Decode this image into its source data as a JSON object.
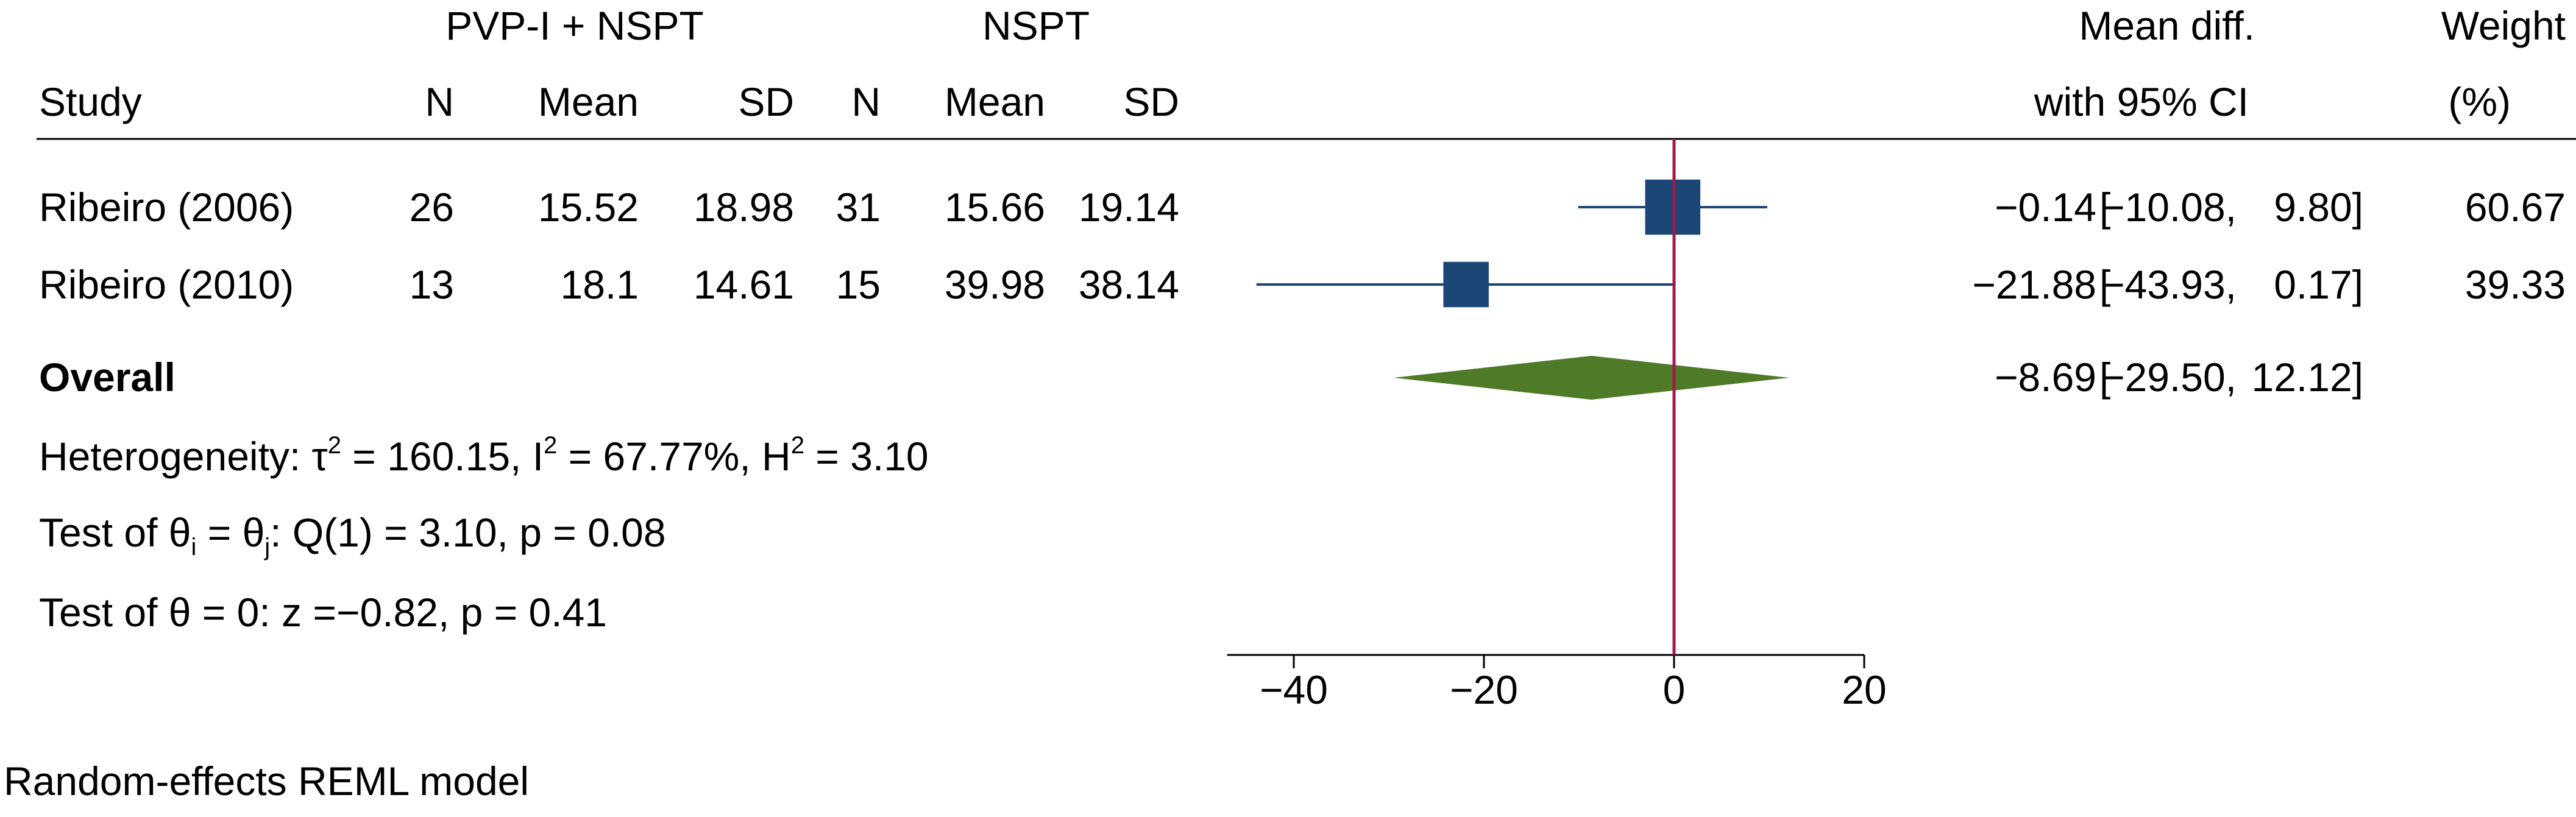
{
  "chart_data": {
    "type": "forest",
    "group_labels": {
      "treatment": "PVP-I + NSPT",
      "control": "NSPT"
    },
    "columns": {
      "study": "Study",
      "n": "N",
      "mean": "Mean",
      "sd": "SD",
      "effect_line1": "Mean diff.",
      "effect_line2": "with 95% CI",
      "weight_line1": "Weight",
      "weight_line2": "(%)"
    },
    "studies": [
      {
        "name": "Ribeiro (2006)",
        "t_n": "26",
        "t_mean": "15.52",
        "t_sd": "18.98",
        "c_n": "31",
        "c_mean": "15.66",
        "c_sd": "19.14",
        "effect": -0.14,
        "lower": -10.08,
        "upper": 9.8,
        "weight": 60.67,
        "effect_text": "−0.14",
        "lower_text": "−10.08,",
        "upper_text": "9.80]",
        "weight_text": "60.67"
      },
      {
        "name": "Ribeiro (2010)",
        "t_n": "13",
        "t_mean": "18.1",
        "t_sd": "14.61",
        "c_n": "15",
        "c_mean": "39.98",
        "c_sd": "38.14",
        "effect": -21.88,
        "lower": -43.93,
        "upper": 0.17,
        "weight": 39.33,
        "effect_text": "−21.88",
        "lower_text": "−43.93,",
        "upper_text": "0.17]",
        "weight_text": "39.33"
      }
    ],
    "overall": {
      "label": "Overall",
      "effect": -8.69,
      "lower": -29.5,
      "upper": 12.12,
      "effect_text": "−8.69",
      "lower_text": "−29.50,",
      "upper_text": "12.12]"
    },
    "stats": {
      "heterogeneity": {
        "prefix": "Heterogeneity: ",
        "tau": "τ",
        "sup": "2",
        "tau_value": " = 160.15, I",
        "i2_value": " = 67.77%, H",
        "h2_value": " = 3.10"
      },
      "test_equal": {
        "prefix": "Test of θ",
        "sub_i": "i",
        "middle": " = θ",
        "sub_j": "j",
        "suffix": ": Q(1) = 3.10, p = 0.08"
      },
      "test_zero": "Test of θ = 0: z =−0.82, p = 0.41"
    },
    "axis": {
      "xlim": [
        -47,
        20
      ],
      "ticks": [
        -40,
        -20,
        0,
        20
      ],
      "tick_labels": [
        "−40",
        "−20",
        "0",
        "20"
      ],
      "reference_line": 0
    },
    "footnote": "Random-effects REML model",
    "colors": {
      "study_marker": "#1a4775",
      "ci_line": "#1a4775",
      "overall_diamond": "#4f7a28",
      "reference_line": "#a3184a",
      "rule": "#000000"
    }
  }
}
